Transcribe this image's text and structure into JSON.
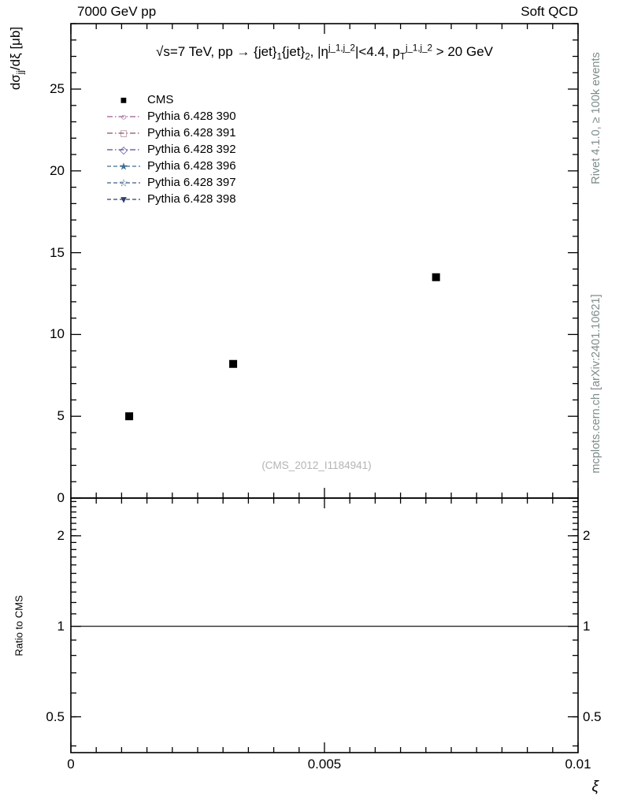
{
  "header": {
    "left": "7000 GeV pp",
    "right": "Soft QCD"
  },
  "side_notes": {
    "top_right": "Rivet 4.1.0, ≥ 100k events",
    "bottom_right": "mcplots.cern.ch [arXiv:2401.10621]"
  },
  "watermark": "(CMS_2012_I1184941)",
  "ratio_ylabel": "Ratio to CMS",
  "xlabel": "ξ",
  "colors": {
    "frame": "#000000",
    "data": "#000000",
    "watermark": "#b4b4b4",
    "side_note": "#7d8c8a",
    "ratio_line": "#000000"
  },
  "title_segments": [
    {
      "t": "√s=7 TeV, pp → {jet}"
    },
    {
      "t": "1",
      "s": "sub"
    },
    {
      "t": "{jet}"
    },
    {
      "t": "2",
      "s": "sub"
    },
    {
      "t": ", |η"
    },
    {
      "t": "j_1,j_2",
      "s": "sup"
    },
    {
      "t": "|<4.4, p"
    },
    {
      "t": "T",
      "s": "sub"
    },
    {
      "t": "j_1,j_2",
      "s": "sup"
    },
    {
      "t": " > 20 GeV"
    }
  ],
  "ylabel_segments": [
    {
      "t": "dσ"
    },
    {
      "t": "jj",
      "s": "sub"
    },
    {
      "t": "/dξ [μb]"
    }
  ],
  "legend": [
    {
      "label": "CMS",
      "marker": "■",
      "color": "#000000",
      "line": "none"
    },
    {
      "label": "Pythia 6.428 390",
      "marker": "○",
      "color": "#9a5a96",
      "line": "dashdot"
    },
    {
      "label": "Pythia 6.428 391",
      "marker": "□",
      "color": "#8a4f63",
      "line": "dashdot"
    },
    {
      "label": "Pythia 6.428 392",
      "marker": "◇",
      "color": "#564a94",
      "line": "dashdot"
    },
    {
      "label": "Pythia 6.428 396",
      "marker": "★",
      "color": "#3f6e93",
      "line": "dashed"
    },
    {
      "label": "Pythia 6.428 397",
      "marker": "☆",
      "color": "#3a5f84",
      "line": "dashed"
    },
    {
      "label": "Pythia 6.428 398",
      "marker": "▼",
      "color": "#2e3f6e",
      "line": "dashed"
    }
  ],
  "chart_data": {
    "type": "scatter",
    "title": "√s=7 TeV, pp → {jet}1{jet}2, |η^{j_1,j_2}|<4.4, p_T^{j_1,j_2} > 20 GeV",
    "xlabel": "ξ",
    "ylabel": "dσ_jj/dξ [μb]",
    "legend_position": "top-left",
    "grid": false,
    "series": [
      {
        "name": "CMS",
        "marker": "filled-square",
        "color": "#000000",
        "points": [
          {
            "x": 0.00115,
            "y": 5.0
          },
          {
            "x": 0.0032,
            "y": 8.2
          },
          {
            "x": 0.0072,
            "y": 13.5
          }
        ]
      }
    ],
    "axes": {
      "x": {
        "min": 0,
        "max": 0.01,
        "major_ticks": [
          0,
          0.005,
          0.01
        ],
        "tick_labels": [
          "0",
          "0.005",
          "0.01"
        ],
        "minor_step": 0.0005
      },
      "y_main": {
        "min": 0,
        "max": 29,
        "major_ticks": [
          0,
          5,
          10,
          15,
          20,
          25
        ],
        "tick_labels": [
          "0",
          "5",
          "10",
          "15",
          "20",
          "25"
        ],
        "minor_step": 1
      },
      "y_ratio": {
        "min": 0.38,
        "max": 2.67,
        "scale": "log",
        "major_ticks": [
          0.5,
          1,
          2
        ],
        "tick_labels": [
          "0.5",
          "1",
          "2"
        ]
      }
    },
    "ratio_reference_line": 1
  }
}
